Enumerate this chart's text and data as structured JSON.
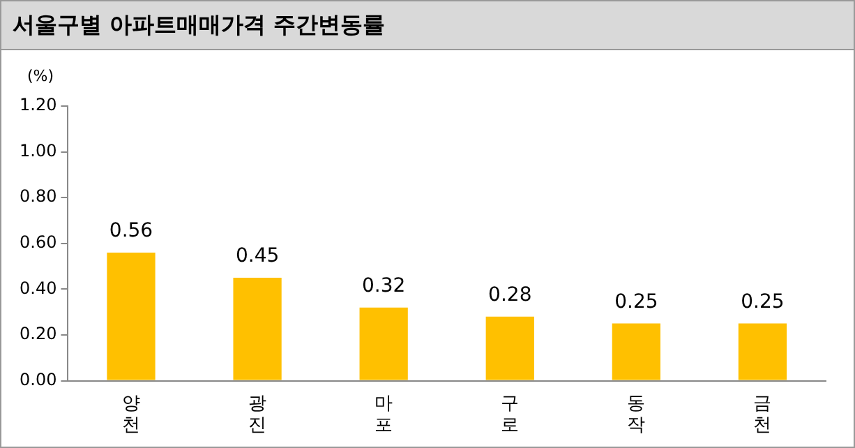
{
  "chart_data": {
    "type": "bar",
    "title": "서울구별 아파트매매가격 주간변동률",
    "ylabel": "(%)",
    "categories": [
      "양천",
      "광진",
      "마포",
      "구로",
      "동작",
      "금천"
    ],
    "values": [
      0.56,
      0.45,
      0.32,
      0.28,
      0.25,
      0.25
    ],
    "color": "#ffc000",
    "ylim": [
      0,
      1.2
    ],
    "yticks": [
      {
        "value": 0,
        "label": "0.00"
      },
      {
        "value": 0.2,
        "label": "0.20"
      },
      {
        "value": 0.4,
        "label": "0.40"
      },
      {
        "value": 0.6,
        "label": "0.60"
      },
      {
        "value": 0.8,
        "label": "0.80"
      },
      {
        "value": 1.0,
        "label": "1.00"
      },
      {
        "value": 1.2,
        "label": "1.20"
      }
    ],
    "grid": false,
    "legend": false,
    "data_labels": true
  }
}
